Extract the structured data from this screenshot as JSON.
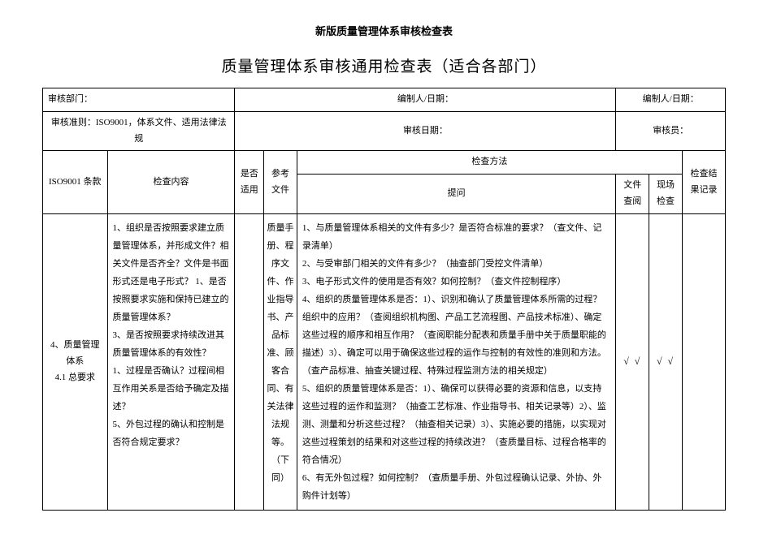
{
  "doc_title": "新版质量管理体系审核检查表",
  "main_title": "质量管理体系审核通用检查表（适合各部门）",
  "info_row1": {
    "c1": "审核部门：",
    "c2": "编制人/日期：",
    "c3": "编制人/日期："
  },
  "info_row2": {
    "c1": "审核准则：ISO9001，体系文件、适用法律法规",
    "c2": "审核日期：",
    "c3": "审核员："
  },
  "headers": {
    "clause": "ISO9001 条款",
    "content": "检查内容",
    "apply": "是否适用",
    "ref": "参考文件",
    "method": "检查方法",
    "question": "提问",
    "doccheck": "文件查阅",
    "sitecheck": "现场检查",
    "result": "检查结果记录"
  },
  "row": {
    "clause": "4、质量管理体系\n4.1 总要求",
    "content": "1、组织是否按照要求建立质量管理体系，并形成文件？相关文件是否齐全？文件是书面形式还是电子形式？ 1、是否按照要求实施和保持已建立的质量管理体系？\n3、是否按照要求持续改进其质量管理体系的有效性？\n1、过程是否确认？过程间相互作用关系是否给予确定及描述？\n5、外包过程的确认和控制是否符合规定要求？",
    "ref": "质量手册、程序文件、作业指导书、产品标准、顾客合同、有关法律法规等。（下同）",
    "question": "1、与质量管理体系相关的文件有多少？是否符合标准的要求？（查文件、记录清单）\n2、与受审部门相关的文件有多少？（抽查部门受控文件清单）\n3、电子形式文件的使用是否有效？如何控制？（查文件控制程序）\n4、组织的质量管理体系是否：1）、识别和确认了质量管理体系所需的过程？组织中的应用？（查阅组织机构图、产品工艺流程图、产品技术标准）、确定这些过程的顺序和相互作用？（查阅职能分配表和质量手册中关于质量职能的描述）3）、确定可以用于确保这些过程的运作与控制的有效性的准则和方法。（查产品标准、抽查关键过程、特殊过程监测方法的相关规定）\n5、组织的质量管理体系是否：1）、确保可以获得必要的资源和信息，以支持这些过程的运作和监测？（抽查工艺标准、作业指导书、相关记录等）2）、监测、测量和分析这些过程？（抽查相关记录）3）、实施必要的措施，以实现对这些过程策划的结果和对这些过程的持续改进？（查质量目标、过程合格率的符合情况）\n6、有无外包过程？如何控制？（查质量手册、外包过程确认记录、外协、外购件计划等）",
    "doccheck": "√ √",
    "sitecheck": "√ √"
  },
  "cols": {
    "w_clause": "78",
    "w_content": "154",
    "w_apply": "35",
    "w_ref": "40",
    "w_question": "385",
    "w_doccheck": "40",
    "w_sitecheck": "40",
    "w_result": "52"
  },
  "colors": {
    "bg": "#ffffff",
    "border": "#000000",
    "text": "#000000"
  }
}
